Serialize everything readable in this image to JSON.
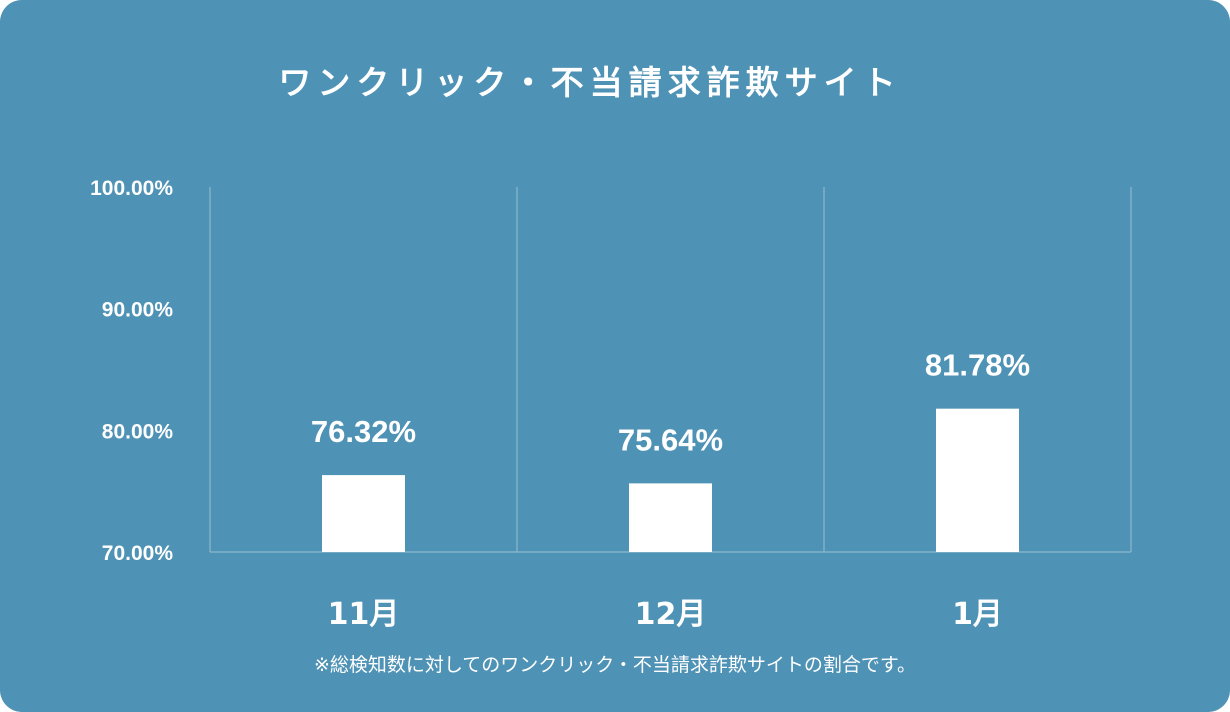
{
  "colors": {
    "background": "#4E92B5",
    "bar": "#FFFFFF",
    "grid": "#8DB8CF",
    "text": "#FFFFFF"
  },
  "chart_data": {
    "type": "bar",
    "title": "ワンクリック・不当請求詐欺サイト",
    "categories": [
      "11月",
      "12月",
      "1月"
    ],
    "values": [
      76.32,
      75.64,
      81.78
    ],
    "data_labels": [
      "76.32%",
      "75.64%",
      "81.78%"
    ],
    "ylim": [
      70,
      100
    ],
    "yticks": [
      70,
      80,
      90,
      100
    ],
    "ytick_labels": [
      "70.00%",
      "80.00%",
      "90.00%",
      "100.00%"
    ],
    "xlabel": "",
    "ylabel": "",
    "grid": "vertical category dividers",
    "legend": "none",
    "footnote": "※総検知数に対してのワンクリック・不当請求詐欺サイトの割合です。"
  }
}
